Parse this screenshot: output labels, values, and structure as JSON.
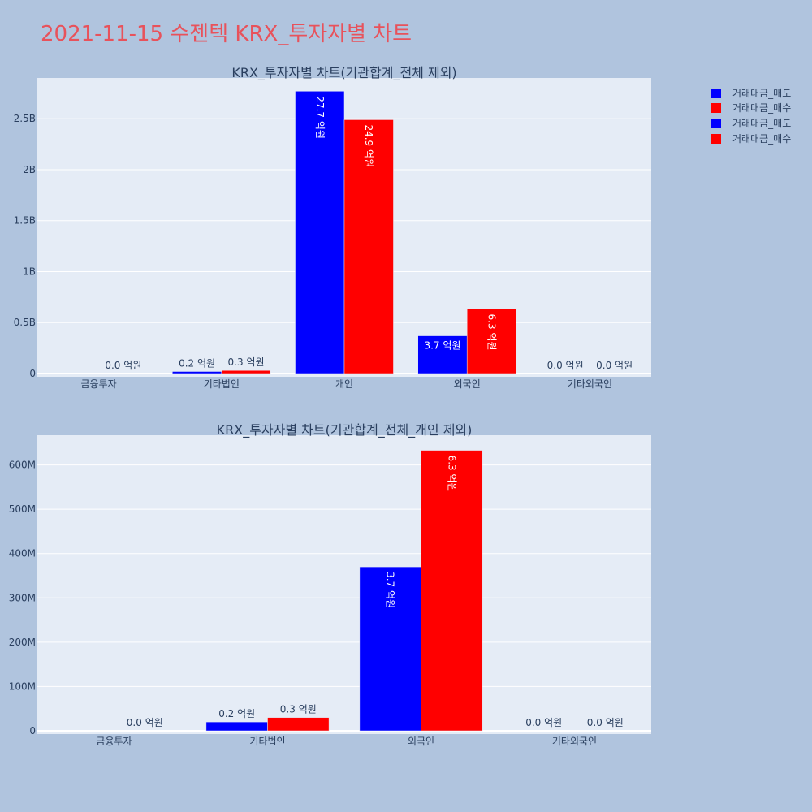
{
  "page_title": "2021-11-15 수젠텍 KRX_투자자별 차트",
  "colors": {
    "background": "#b0c4de",
    "plot_bg": "#e5ecf6",
    "title": "#e8525b",
    "text": "#2a3f5f",
    "sell": "#0000ff",
    "buy": "#ff0000"
  },
  "legend": [
    "거래대금_매도",
    "거래대금_매수",
    "거래대금_매도",
    "거래대금_매수"
  ],
  "chart_data": [
    {
      "type": "bar",
      "title": "KRX_투자자별 차트(기관합계_전체 제외)",
      "categories": [
        "금융투자",
        "기타법인",
        "개인",
        "외국인",
        "기타외국인"
      ],
      "series": [
        {
          "name": "거래대금_매도",
          "color": "#0000ff",
          "values": [
            0,
            20000000,
            2770000000,
            370000000,
            0
          ],
          "labels": [
            "",
            "0.2 억원",
            "27.7 억원",
            "3.7 억원",
            "0.0 억원"
          ]
        },
        {
          "name": "거래대금_매수",
          "color": "#ff0000",
          "values": [
            0,
            30000000,
            2490000000,
            633000000,
            0
          ],
          "labels": [
            "0.0 억원",
            "0.3 억원",
            "24.9 억원",
            "6.3 억원",
            "0.0 억원"
          ]
        }
      ],
      "y_ticks": [
        {
          "value": 0,
          "label": "0"
        },
        {
          "value": 500000000,
          "label": "0.5B"
        },
        {
          "value": 1000000000,
          "label": "1B"
        },
        {
          "value": 1500000000,
          "label": "1.5B"
        },
        {
          "value": 2000000000,
          "label": "2B"
        },
        {
          "value": 2500000000,
          "label": "2.5B"
        }
      ],
      "ylim": [
        0,
        2900000000
      ],
      "grid": true
    },
    {
      "type": "bar",
      "title": "KRX_투자자별 차트(기관합계_전체_개인 제외)",
      "categories": [
        "금융투자",
        "기타법인",
        "외국인",
        "기타외국인"
      ],
      "series": [
        {
          "name": "거래대금_매도",
          "color": "#0000ff",
          "values": [
            0,
            20000000,
            370000000,
            0
          ],
          "labels": [
            "",
            "0.2 억원",
            "3.7 억원",
            "0.0 억원"
          ]
        },
        {
          "name": "거래대금_매수",
          "color": "#ff0000",
          "values": [
            0,
            30000000,
            633000000,
            0
          ],
          "labels": [
            "0.0 억원",
            "0.3 억원",
            "6.3 억원",
            "0.0 억원"
          ]
        }
      ],
      "y_ticks": [
        {
          "value": 0,
          "label": "0"
        },
        {
          "value": 100000000,
          "label": "100M"
        },
        {
          "value": 200000000,
          "label": "200M"
        },
        {
          "value": 300000000,
          "label": "300M"
        },
        {
          "value": 400000000,
          "label": "400M"
        },
        {
          "value": 500000000,
          "label": "500M"
        },
        {
          "value": 600000000,
          "label": "600M"
        }
      ],
      "ylim": [
        0,
        667000000
      ],
      "grid": true
    }
  ]
}
